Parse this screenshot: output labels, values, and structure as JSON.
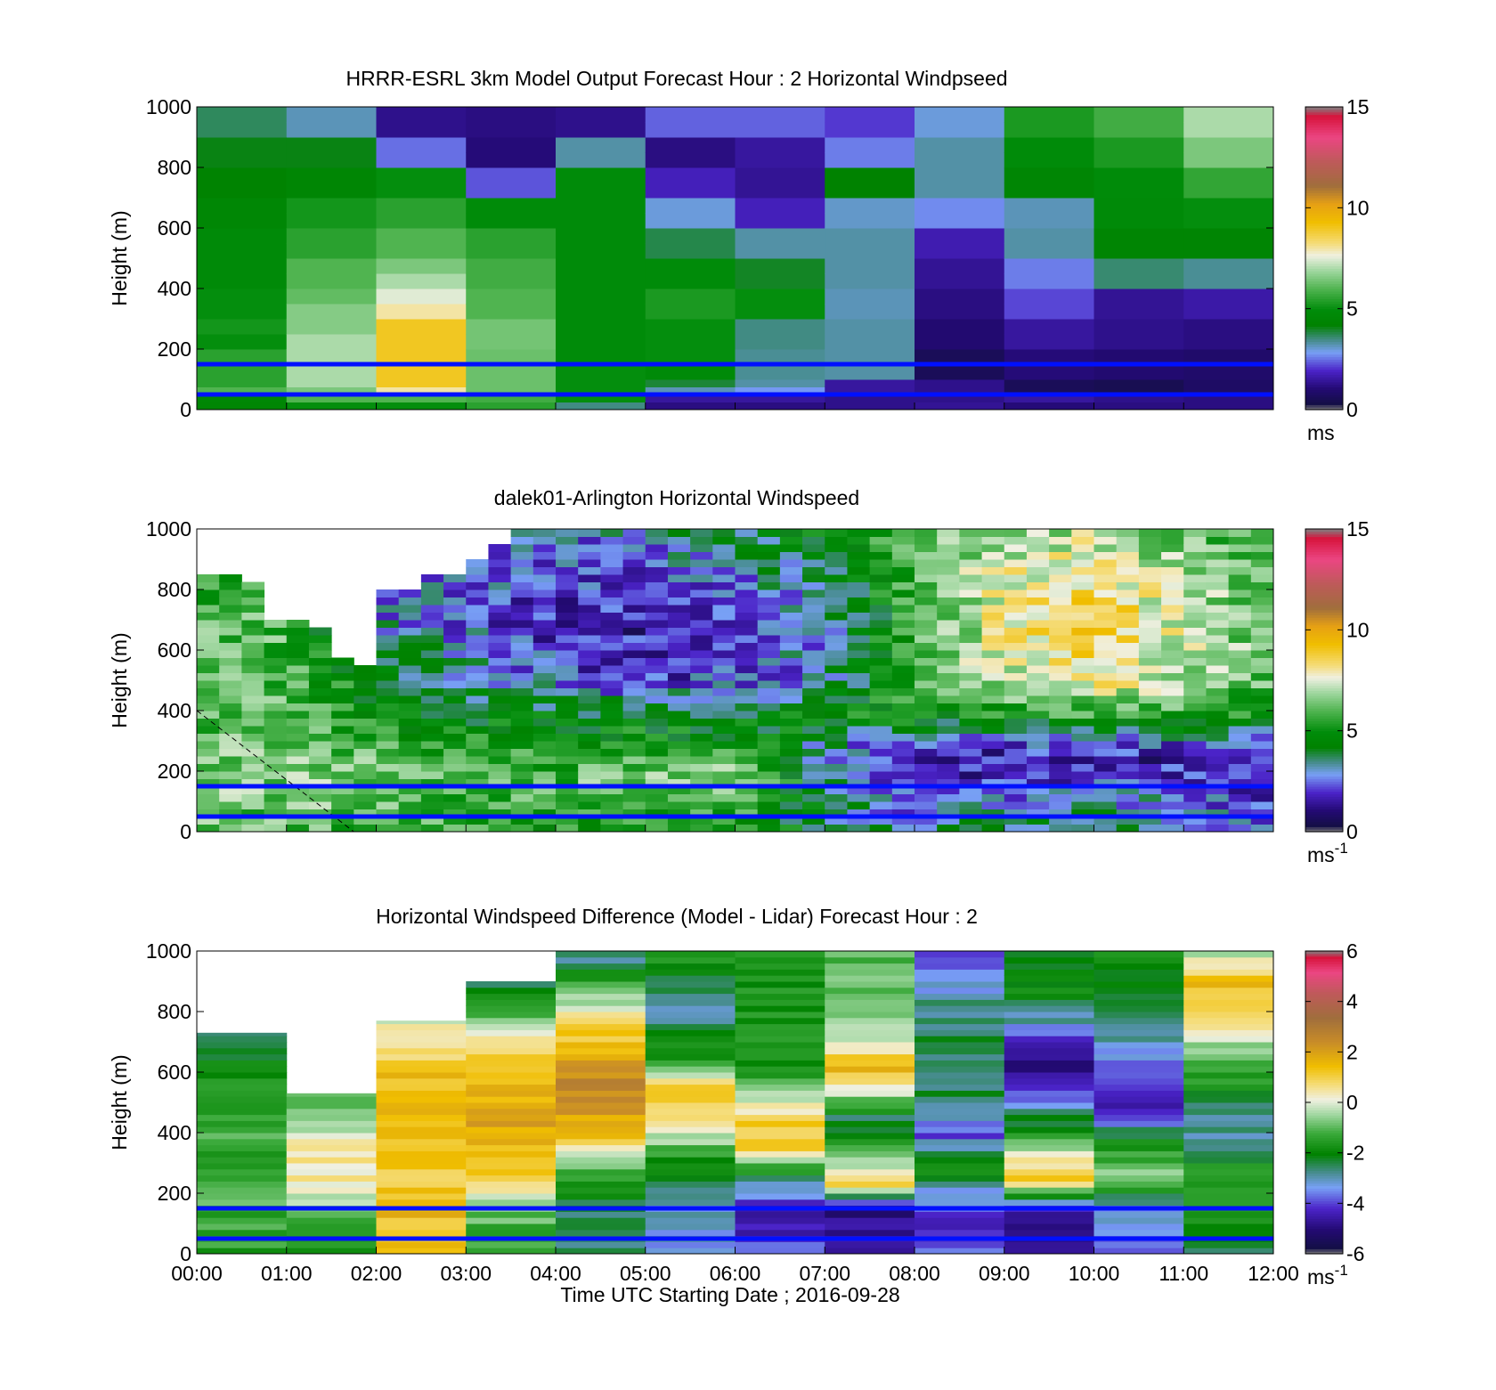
{
  "figure": {
    "xlabel": "Time UTC  Starting Date ; 2016-09-28"
  },
  "chart_data": [
    {
      "type": "heatmap",
      "title": "HRRR-ESRL 3km Model Output   Forecast Hour : 2 Horizontal Windpseed",
      "xlabel": "",
      "ylabel": "Height (m)",
      "ylim": [
        0,
        1000
      ],
      "xlim": [
        0,
        12
      ],
      "y_ticks": [
        "0",
        "200",
        "400",
        "600",
        "800",
        "1000"
      ],
      "x_ticks": [
        "00:00",
        "01:00",
        "02:00",
        "03:00",
        "04:00",
        "05:00",
        "06:00",
        "07:00",
        "08:00",
        "09:00",
        "10:00",
        "11:00",
        "12:00"
      ],
      "x_tick_labels_shown": false,
      "hlines": [
        150,
        50
      ],
      "colorbar": {
        "ticks": [
          "0",
          "5",
          "10",
          "15"
        ],
        "min": 0,
        "max": 15,
        "unit": "ms",
        "unit_sup": ""
      },
      "levels": [
        0,
        25,
        50,
        75,
        100,
        150,
        200,
        250,
        300,
        350,
        400,
        450,
        500,
        550,
        600,
        650,
        700,
        750,
        800,
        850,
        900,
        950,
        1000
      ],
      "x_edges": [
        0,
        1,
        2,
        3,
        4,
        5,
        6,
        7,
        8,
        9,
        10,
        11,
        12
      ],
      "columns": [
        [
          4.5,
          4.6,
          6,
          5.5,
          5.5,
          5.5,
          5,
          5.2,
          5,
          5,
          4.8,
          4.8,
          4.8,
          4.8,
          4.6,
          4.6,
          4.3,
          4.3,
          4.1,
          4.1,
          3.7,
          3.7
        ],
        [
          5,
          6,
          6.5,
          7,
          7,
          7,
          7,
          6.6,
          6.6,
          6.2,
          6,
          6,
          5.5,
          5.5,
          5.2,
          5.2,
          4.5,
          4.5,
          4.1,
          4.1,
          3.2,
          3.2
        ],
        [
          5,
          6,
          8,
          9,
          9,
          9,
          9,
          9,
          8,
          7.5,
          7,
          6.5,
          6,
          6,
          5.5,
          5.5,
          5,
          5,
          2.5,
          2.5,
          1.3,
          1.3
        ],
        [
          5.5,
          5.8,
          6.3,
          6.3,
          6.3,
          6.3,
          6.4,
          6.4,
          6,
          6,
          5.8,
          5.8,
          5.5,
          5.5,
          4.9,
          4.9,
          2.3,
          2.3,
          1.1,
          1.1,
          1.2,
          1.2
        ],
        [
          3.5,
          5,
          5,
          5,
          5,
          4.9,
          4.9,
          4.9,
          4.9,
          4.9,
          4.9,
          4.9,
          4.9,
          4.9,
          4.9,
          4.9,
          4.9,
          4.9,
          3.3,
          3.3,
          1.3,
          1.3
        ],
        [
          1.2,
          1.5,
          3.2,
          3.9,
          4.8,
          5,
          5,
          5,
          5.3,
          5.3,
          4.9,
          4.9,
          3.8,
          3.8,
          3,
          3,
          1.8,
          1.8,
          1.2,
          1.2,
          2.4,
          2.4
        ],
        [
          1.2,
          1.5,
          2.8,
          3.3,
          3.4,
          3.4,
          3.5,
          3.5,
          5,
          5,
          4,
          4,
          3.3,
          3.3,
          1.8,
          1.8,
          1.4,
          1.4,
          1.5,
          1.5,
          2.4,
          2.4
        ],
        [
          1.3,
          1.3,
          1.5,
          1.5,
          3.3,
          3.3,
          3.3,
          3.3,
          3.2,
          3.2,
          3.3,
          3.3,
          3.3,
          3.3,
          3.1,
          3.1,
          4.2,
          4.2,
          2.6,
          2.6,
          2.1,
          2.1
        ],
        [
          1.4,
          1.3,
          1.3,
          1.3,
          0.6,
          0.6,
          1.0,
          1.0,
          1.2,
          1.2,
          1.4,
          1.4,
          1.7,
          1.7,
          2.7,
          2.7,
          3.3,
          3.3,
          3.3,
          3.3,
          3.0,
          3.0
        ],
        [
          1.1,
          1.5,
          0.6,
          0.6,
          1.1,
          1.1,
          1.5,
          1.5,
          2.2,
          2.2,
          2.6,
          2.6,
          3.3,
          3.3,
          3.2,
          3.2,
          4.5,
          4.5,
          4.9,
          4.9,
          5.3,
          5.3
        ],
        [
          1.2,
          1.3,
          0.5,
          0.5,
          1.0,
          1.0,
          1.3,
          1.3,
          1.4,
          1.4,
          3.6,
          3.6,
          4.4,
          4.4,
          4.8,
          4.8,
          4.9,
          4.9,
          5.3,
          5.3,
          5.8,
          5.8
        ],
        [
          1.2,
          1.2,
          0.8,
          0.8,
          0.9,
          0.9,
          1.2,
          1.2,
          1.6,
          1.6,
          3.4,
          3.4,
          4.4,
          4.4,
          5,
          5,
          5.6,
          5.6,
          6.5,
          6.5,
          7,
          7
        ]
      ]
    },
    {
      "type": "heatmap",
      "title": "dalek01-Arlington  Horizontal Windspeed",
      "xlabel": "",
      "ylabel": "Height (m)",
      "ylim": [
        0,
        1000
      ],
      "xlim": [
        0,
        12
      ],
      "y_ticks": [
        "0",
        "200",
        "400",
        "600",
        "800",
        "1000"
      ],
      "x_ticks": [
        "00:00",
        "01:00",
        "02:00",
        "03:00",
        "04:00",
        "05:00",
        "06:00",
        "07:00",
        "08:00",
        "09:00",
        "10:00",
        "11:00",
        "12:00"
      ],
      "x_tick_labels_shown": false,
      "hlines": [
        150,
        50
      ],
      "colorbar": {
        "ticks": [
          "0",
          "5",
          "10",
          "15"
        ],
        "min": 0,
        "max": 15,
        "unit": "ms",
        "unit_sup": "-1"
      },
      "annotation": "dashed diagonal line from (00:00, 400 m) to (01:45, 0 m)",
      "level_step": 25,
      "ncols": 48,
      "top_of_data_m": [
        840,
        840,
        820,
        690,
        690,
        670,
        560,
        530,
        780,
        800,
        830,
        850,
        900,
        940,
        1000,
        1000,
        1000,
        1000,
        1000,
        1000,
        1000,
        1000,
        1000,
        1000,
        1000,
        1000,
        1000,
        1000,
        1000,
        1000,
        1000,
        1000,
        1000,
        1000,
        1000,
        1000,
        1000,
        1000,
        1000,
        1000,
        1000,
        1000,
        1000,
        1000,
        1000,
        1000,
        1000,
        1000
      ],
      "profile_nodes_m": [
        0,
        150,
        250,
        300,
        380,
        500,
        700,
        1000
      ],
      "profile_nodes_hours": [
        0,
        1,
        2,
        3,
        4,
        5,
        6,
        7,
        8,
        9,
        10,
        11,
        12
      ],
      "profile_speeds": [
        [
          6,
          6.5,
          6.5,
          6.2,
          6,
          6,
          6,
          5.5
        ],
        [
          6,
          6.5,
          6.5,
          6.2,
          6,
          6,
          6,
          5.5
        ],
        [
          6,
          6.5,
          6.3,
          5.5,
          5,
          4.5,
          3,
          3
        ],
        [
          5.5,
          6,
          5.5,
          5,
          4.5,
          3.5,
          2.5,
          3
        ],
        [
          5,
          6,
          5.5,
          5,
          4.5,
          2.5,
          1.5,
          3
        ],
        [
          5,
          6.5,
          6,
          5,
          4.5,
          2,
          1.5,
          3
        ],
        [
          5,
          6.5,
          6,
          5,
          4,
          2.5,
          2,
          4
        ],
        [
          4,
          4,
          3,
          3.5,
          5,
          3,
          3,
          4.5
        ],
        [
          3,
          2,
          1.5,
          2.5,
          5,
          6,
          5.5,
          6
        ],
        [
          4,
          2,
          1.5,
          2.5,
          5,
          7,
          8,
          7
        ],
        [
          4,
          2.5,
          1.5,
          2.8,
          5.5,
          8,
          9,
          7
        ],
        [
          3.5,
          2.5,
          1.5,
          2.5,
          5.5,
          7,
          7.5,
          6
        ],
        [
          2.5,
          2,
          1.5,
          2.5,
          5,
          6,
          6,
          5.5
        ]
      ]
    },
    {
      "type": "heatmap",
      "title": "Horizontal Windspeed Difference (Model - Lidar) Forecast Hour : 2",
      "xlabel": "Time UTC  Starting Date ; 2016-09-28",
      "ylabel": "Height (m)",
      "ylim": [
        0,
        1000
      ],
      "xlim": [
        0,
        12
      ],
      "y_ticks": [
        "0",
        "200",
        "400",
        "600",
        "800",
        "1000"
      ],
      "x_ticks": [
        "00:00",
        "01:00",
        "02:00",
        "03:00",
        "04:00",
        "05:00",
        "06:00",
        "07:00",
        "08:00",
        "09:00",
        "10:00",
        "11:00",
        "12:00"
      ],
      "x_tick_labels_shown": true,
      "hlines": [
        150,
        50
      ],
      "colorbar": {
        "ticks": [
          "6",
          "4",
          "2",
          "0",
          "-2",
          "-4",
          "-6"
        ],
        "min": -6,
        "max": 6,
        "unit": "ms",
        "unit_sup": "-1"
      },
      "x_edges": [
        0,
        1,
        2,
        3,
        4,
        5,
        6,
        7,
        8,
        9,
        10,
        11,
        12
      ],
      "column_tops_m": [
        730,
        530,
        770,
        900,
        1000,
        1000,
        1000,
        1000,
        1000,
        1000,
        1000,
        1000
      ],
      "column_profiles": [
        [
          [
            0,
            -1.5
          ],
          [
            150,
            -1.2
          ],
          [
            200,
            -1.3
          ],
          [
            400,
            -1.3
          ],
          [
            600,
            -2.0
          ],
          [
            730,
            -2.5
          ]
        ],
        [
          [
            0,
            -1.5
          ],
          [
            150,
            -1.2
          ],
          [
            200,
            0.2
          ],
          [
            300,
            0.4
          ],
          [
            400,
            0
          ],
          [
            450,
            -1.0
          ],
          [
            530,
            -1.2
          ]
        ],
        [
          [
            0,
            1.2
          ],
          [
            150,
            1.5
          ],
          [
            250,
            1.2
          ],
          [
            400,
            1.5
          ],
          [
            600,
            1.3
          ],
          [
            770,
            0
          ]
        ],
        [
          [
            0,
            -1.5
          ],
          [
            150,
            -0.8
          ],
          [
            250,
            1.0
          ],
          [
            450,
            2.0
          ],
          [
            600,
            1.5
          ],
          [
            700,
            0.5
          ],
          [
            800,
            -1.5
          ],
          [
            900,
            -2.5
          ]
        ],
        [
          [
            0,
            -2.5
          ],
          [
            150,
            -2.5
          ],
          [
            300,
            -0.8
          ],
          [
            400,
            1.5
          ],
          [
            550,
            2.8
          ],
          [
            700,
            1.5
          ],
          [
            800,
            0.2
          ],
          [
            900,
            -1.5
          ],
          [
            1000,
            -3.0
          ]
        ],
        [
          [
            0,
            -3.5
          ],
          [
            150,
            -3.0
          ],
          [
            300,
            -1.8
          ],
          [
            450,
            1.0
          ],
          [
            550,
            1.3
          ],
          [
            650,
            -1.5
          ],
          [
            800,
            -2.8
          ],
          [
            1000,
            -1.5
          ]
        ],
        [
          [
            0,
            -4.0
          ],
          [
            150,
            -4.5
          ],
          [
            250,
            -2.5
          ],
          [
            350,
            1.2
          ],
          [
            450,
            1.0
          ],
          [
            600,
            -1.8
          ],
          [
            1000,
            -1.8
          ]
        ],
        [
          [
            0,
            -4.5
          ],
          [
            150,
            -5.0
          ],
          [
            230,
            1.0
          ],
          [
            300,
            -0.5
          ],
          [
            450,
            -2.5
          ],
          [
            600,
            1.5
          ],
          [
            750,
            -0.5
          ],
          [
            1000,
            -1.0
          ]
        ],
        [
          [
            0,
            -4.0
          ],
          [
            150,
            -4.0
          ],
          [
            300,
            -1.5
          ],
          [
            400,
            -4.0
          ],
          [
            500,
            -2.5
          ],
          [
            700,
            -2.5
          ],
          [
            850,
            -3.0
          ],
          [
            1000,
            -4.5
          ]
        ],
        [
          [
            0,
            -4.5
          ],
          [
            150,
            -4.5
          ],
          [
            250,
            1.5
          ],
          [
            400,
            -1.5
          ],
          [
            600,
            -5.0
          ],
          [
            700,
            -4.0
          ],
          [
            850,
            -2.0
          ],
          [
            1000,
            -2.5
          ]
        ],
        [
          [
            0,
            -3.5
          ],
          [
            150,
            -3.5
          ],
          [
            250,
            -0.5
          ],
          [
            350,
            -1.5
          ],
          [
            500,
            -4.8
          ],
          [
            600,
            -4.0
          ],
          [
            800,
            -2.0
          ],
          [
            1000,
            -1.8
          ]
        ],
        [
          [
            0,
            -2.5
          ],
          [
            150,
            -1.8
          ],
          [
            250,
            -1.3
          ],
          [
            400,
            -3.0
          ],
          [
            600,
            -1.5
          ],
          [
            800,
            1.0
          ],
          [
            900,
            1.5
          ],
          [
            1000,
            -0.5
          ]
        ]
      ]
    }
  ]
}
